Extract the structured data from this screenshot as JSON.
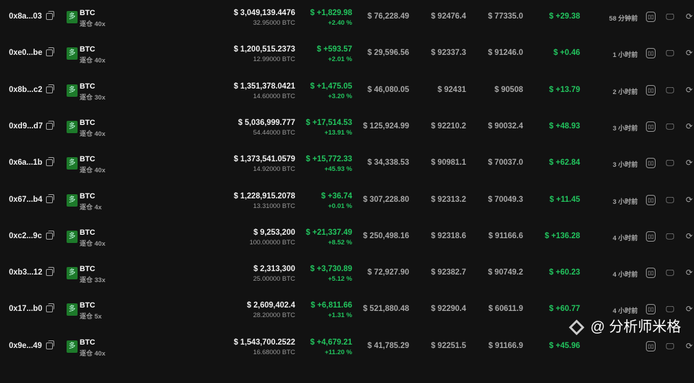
{
  "rows": [
    {
      "address": "0x8a...03",
      "symbol": "BTC",
      "leverage": "逐仓 40x",
      "value": "$ 3,049,139.4476",
      "qty": "32.95000 BTC",
      "pnl": "$ +1,829.98",
      "pnl_pct": "+2.40 %",
      "entry": "$ 76,228.49",
      "mark": "$ 92476.4",
      "liq": "$ 77335.0",
      "funding": "$ +29.38",
      "time": "58 分钟前"
    },
    {
      "address": "0xe0...be",
      "symbol": "BTC",
      "leverage": "逐仓 40x",
      "value": "$ 1,200,515.2373",
      "qty": "12.99000 BTC",
      "pnl": "$ +593.57",
      "pnl_pct": "+2.01 %",
      "entry": "$ 29,596.56",
      "mark": "$ 92337.3",
      "liq": "$ 91246.0",
      "funding": "$ +0.46",
      "time": "1 小时前"
    },
    {
      "address": "0x8b...c2",
      "symbol": "BTC",
      "leverage": "逐仓 30x",
      "value": "$ 1,351,378.0421",
      "qty": "14.60000 BTC",
      "pnl": "$ +1,475.05",
      "pnl_pct": "+3.20 %",
      "entry": "$ 46,080.05",
      "mark": "$ 92431",
      "liq": "$ 90508",
      "funding": "$ +13.79",
      "time": "2 小时前"
    },
    {
      "address": "0xd9...d7",
      "symbol": "BTC",
      "leverage": "逐仓 40x",
      "value": "$ 5,036,999.777",
      "qty": "54.44000 BTC",
      "pnl": "$ +17,514.53",
      "pnl_pct": "+13.91 %",
      "entry": "$ 125,924.99",
      "mark": "$ 92210.2",
      "liq": "$ 90032.4",
      "funding": "$ +48.93",
      "time": "3 小时前"
    },
    {
      "address": "0x6a...1b",
      "symbol": "BTC",
      "leverage": "逐仓 40x",
      "value": "$ 1,373,541.0579",
      "qty": "14.92000 BTC",
      "pnl": "$ +15,772.33",
      "pnl_pct": "+45.93 %",
      "entry": "$ 34,338.53",
      "mark": "$ 90981.1",
      "liq": "$ 70037.0",
      "funding": "$ +62.84",
      "time": "3 小时前"
    },
    {
      "address": "0x67...b4",
      "symbol": "BTC",
      "leverage": "逐仓 4x",
      "value": "$ 1,228,915.2078",
      "qty": "13.31000 BTC",
      "pnl": "$ +36.74",
      "pnl_pct": "+0.01 %",
      "entry": "$ 307,228.80",
      "mark": "$ 92313.2",
      "liq": "$ 70049.3",
      "funding": "$ +11.45",
      "time": "3 小时前"
    },
    {
      "address": "0xc2...9c",
      "symbol": "BTC",
      "leverage": "逐仓 40x",
      "value": "$ 9,253,200",
      "qty": "100.00000 BTC",
      "pnl": "$ +21,337.49",
      "pnl_pct": "+8.52 %",
      "entry": "$ 250,498.16",
      "mark": "$ 92318.6",
      "liq": "$ 91166.6",
      "funding": "$ +136.28",
      "time": "4 小时前"
    },
    {
      "address": "0xb3...12",
      "symbol": "BTC",
      "leverage": "逐仓 33x",
      "value": "$ 2,313,300",
      "qty": "25.00000 BTC",
      "pnl": "$ +3,730.89",
      "pnl_pct": "+5.12 %",
      "entry": "$ 72,927.90",
      "mark": "$ 92382.7",
      "liq": "$ 90749.2",
      "funding": "$ +60.23",
      "time": "4 小时前"
    },
    {
      "address": "0x17...b0",
      "symbol": "BTC",
      "leverage": "逐仓 5x",
      "value": "$ 2,609,402.4",
      "qty": "28.20000 BTC",
      "pnl": "$ +6,811.66",
      "pnl_pct": "+1.31 %",
      "entry": "$ 521,880.48",
      "mark": "$ 92290.4",
      "liq": "$ 60611.9",
      "funding": "$ +60.77",
      "time": "4 小时前"
    },
    {
      "address": "0x9e...49",
      "symbol": "BTC",
      "leverage": "逐仓 40x",
      "value": "$ 1,543,700.2522",
      "qty": "16.68000 BTC",
      "pnl": "$ +4,679.21",
      "pnl_pct": "+11.20 %",
      "entry": "$ 41,785.29",
      "mark": "$ 92251.5",
      "liq": "$ 91166.9",
      "funding": "$ +45.96",
      "time": ""
    }
  ],
  "badge_glyph": "多",
  "watermark": "@ 分析师米格",
  "colors": {
    "background": "#121212",
    "positive": "#22c55e",
    "badge": "#1d7a2a"
  }
}
